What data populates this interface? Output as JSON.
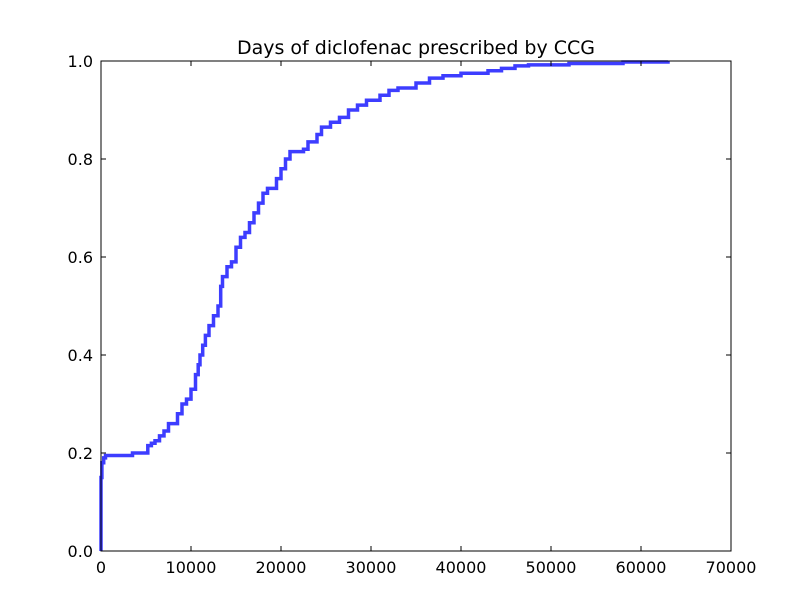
{
  "chart_data": {
    "type": "line",
    "title": "Days of diclofenac prescribed by CCG",
    "xlabel": "",
    "ylabel": "",
    "xlim": [
      0,
      70000
    ],
    "ylim": [
      0,
      1.0
    ],
    "xticks": [
      0,
      10000,
      20000,
      30000,
      40000,
      50000,
      60000,
      70000
    ],
    "yticks": [
      0.0,
      0.2,
      0.4,
      0.6,
      0.8,
      1.0
    ],
    "xtick_labels": [
      "0",
      "10000",
      "20000",
      "30000",
      "40000",
      "50000",
      "60000",
      "70000"
    ],
    "ytick_labels": [
      "0.0",
      "0.2",
      "0.4",
      "0.6",
      "0.8",
      "1.0"
    ],
    "grid": false,
    "series": [
      {
        "color": "#3333ff",
        "step": true,
        "x": [
          0,
          0,
          100,
          300,
          500,
          3000,
          3500,
          4800,
          5200,
          5600,
          6000,
          6500,
          7000,
          7500,
          8500,
          9000,
          9500,
          10000,
          10500,
          10800,
          11000,
          11300,
          11600,
          12000,
          12500,
          13000,
          13300,
          13500,
          14000,
          14500,
          15000,
          15500,
          16000,
          16500,
          17000,
          17500,
          18000,
          18500,
          19500,
          20000,
          20500,
          21000,
          22500,
          23000,
          24000,
          24500,
          25500,
          26500,
          27500,
          28500,
          29500,
          31000,
          32000,
          33000,
          35000,
          36500,
          38000,
          40000,
          43000,
          44500,
          46000,
          47500,
          52000,
          58000,
          63000
        ],
        "y": [
          0.0,
          0.15,
          0.18,
          0.19,
          0.195,
          0.195,
          0.2,
          0.2,
          0.215,
          0.22,
          0.225,
          0.235,
          0.245,
          0.26,
          0.28,
          0.3,
          0.31,
          0.33,
          0.36,
          0.38,
          0.4,
          0.42,
          0.44,
          0.46,
          0.48,
          0.5,
          0.54,
          0.56,
          0.58,
          0.59,
          0.62,
          0.64,
          0.65,
          0.67,
          0.69,
          0.71,
          0.73,
          0.74,
          0.76,
          0.78,
          0.8,
          0.815,
          0.82,
          0.835,
          0.85,
          0.865,
          0.875,
          0.885,
          0.9,
          0.91,
          0.92,
          0.93,
          0.94,
          0.945,
          0.955,
          0.965,
          0.97,
          0.975,
          0.98,
          0.985,
          0.99,
          0.992,
          0.995,
          0.998,
          1.0
        ]
      }
    ]
  }
}
